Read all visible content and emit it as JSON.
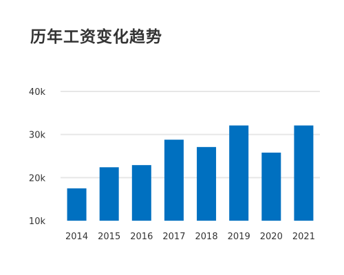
{
  "chart_data": {
    "type": "bar",
    "title": "历年工资变化趋势",
    "xlabel": "",
    "ylabel": "",
    "categories": [
      "2014",
      "2015",
      "2016",
      "2017",
      "2018",
      "2019",
      "2020",
      "2021"
    ],
    "series": [
      {
        "values": [
          17500,
          22400,
          22900,
          28800,
          27100,
          32100,
          25800,
          32100
        ]
      }
    ],
    "ylim": [
      10000,
      40000
    ],
    "yticks": [
      10000,
      20000,
      30000,
      40000
    ],
    "ytick_labels": [
      "10k",
      "20k",
      "30k",
      "40k"
    ],
    "grid": true,
    "legend": "none",
    "bar_color": "#0070c0",
    "grid_color": "#e6e6e6"
  }
}
